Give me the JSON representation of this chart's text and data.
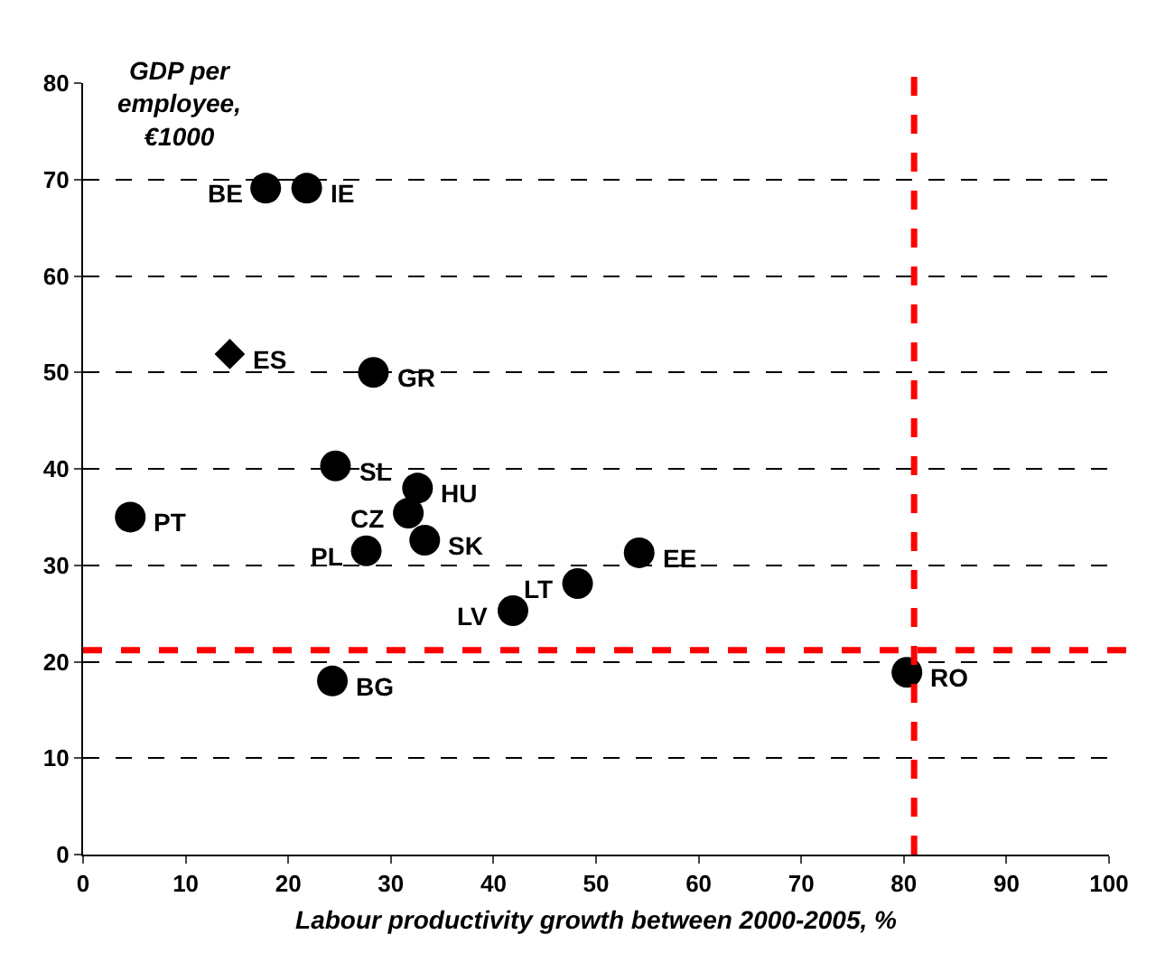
{
  "chart_data": {
    "type": "scatter",
    "xlabel": "Labour productivity growth between 2000-2005, %",
    "ylabel": "GDP per employee, €1000",
    "xlim": [
      0,
      100
    ],
    "xticks": [
      0,
      10,
      20,
      30,
      40,
      50,
      60,
      70,
      80,
      90,
      100
    ],
    "ylim": [
      0,
      80
    ],
    "yticks": [
      0,
      10,
      20,
      30,
      40,
      50,
      60,
      70,
      80
    ],
    "grid": "y",
    "series": [
      {
        "color": "#000000",
        "marker": "circle",
        "x": [
          17.8,
          21.8,
          28.3,
          24.6,
          32.6,
          31.7,
          4.6,
          27.6,
          33.3,
          48.2,
          54.2,
          41.9,
          24.3,
          80.3
        ],
        "values": [
          69.1,
          69.1,
          50.0,
          40.3,
          38.0,
          35.4,
          35.0,
          31.5,
          32.6,
          28.1,
          31.3,
          25.3,
          18.0,
          18.9
        ]
      },
      {
        "color": "#000000",
        "marker": "diamond",
        "x": [
          14.3
        ],
        "values": [
          51.9
        ]
      }
    ],
    "ref_lines": [
      {
        "axis": "x",
        "value": 81,
        "color": "#ff0000",
        "line_style": "dashed"
      },
      {
        "axis": "y",
        "value": 21.2,
        "color": "#ff0000",
        "line_style": "dashed"
      }
    ],
    "annotations": [
      {
        "text": "BE",
        "x": 17.8,
        "y": 69.1
      },
      {
        "text": "IE",
        "x": 21.8,
        "y": 69.1
      },
      {
        "text": "ES",
        "x": 14.3,
        "y": 51.9
      },
      {
        "text": "GR",
        "x": 28.3,
        "y": 50.0
      },
      {
        "text": "SL",
        "x": 24.6,
        "y": 40.3
      },
      {
        "text": "HU",
        "x": 32.6,
        "y": 38.0
      },
      {
        "text": "CZ",
        "x": 31.7,
        "y": 35.4
      },
      {
        "text": "PT",
        "x": 4.6,
        "y": 35.0
      },
      {
        "text": "PL",
        "x": 27.6,
        "y": 31.5
      },
      {
        "text": "SK",
        "x": 33.3,
        "y": 32.6
      },
      {
        "text": "LT",
        "x": 48.2,
        "y": 28.1
      },
      {
        "text": "EE",
        "x": 54.2,
        "y": 31.3
      },
      {
        "text": "LV",
        "x": 41.9,
        "y": 25.3
      },
      {
        "text": "BG",
        "x": 24.3,
        "y": 18.0
      },
      {
        "text": "RO",
        "x": 80.3,
        "y": 18.9
      }
    ]
  }
}
